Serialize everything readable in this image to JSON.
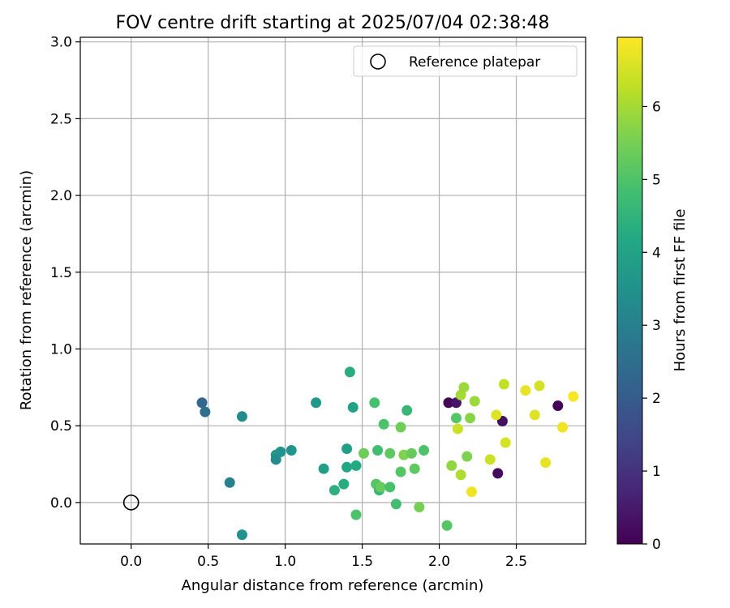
{
  "chart_data": {
    "type": "scatter",
    "title": "FOV centre drift starting at 2025/07/04 02:38:48",
    "xlabel": "Angular distance from reference (arcmin)",
    "ylabel": "Rotation from reference (arcmin)",
    "xlim": [
      -0.33,
      2.95
    ],
    "ylim": [
      -0.27,
      3.03
    ],
    "xticks": [
      0.0,
      0.5,
      1.0,
      1.5,
      2.0,
      2.5
    ],
    "xtick_labels": [
      "0.0",
      "0.5",
      "1.0",
      "1.5",
      "2.0",
      "2.5"
    ],
    "yticks": [
      0.0,
      0.5,
      1.0,
      1.5,
      2.0,
      2.5,
      3.0
    ],
    "ytick_labels": [
      "0.0",
      "0.5",
      "1.0",
      "1.5",
      "2.0",
      "2.5",
      "3.0"
    ],
    "grid": true,
    "colormap": "viridis",
    "colorbar": {
      "label": "Hours from first FF file",
      "range": [
        0,
        6.95
      ],
      "ticks": [
        0,
        1,
        2,
        3,
        4,
        5,
        6
      ],
      "tick_labels": [
        "0",
        "1",
        "2",
        "3",
        "4",
        "5",
        "6"
      ]
    },
    "legend": {
      "position": "top-right",
      "entries": [
        {
          "label": "Reference platepar",
          "marker": "open-circle"
        }
      ]
    },
    "reference_point": {
      "x": 0.0,
      "y": 0.0
    },
    "series": [
      {
        "points": [
          {
            "x": 2.06,
            "y": 0.65,
            "c": 0.1
          },
          {
            "x": 2.11,
            "y": 0.65,
            "c": 0.4
          },
          {
            "x": 2.41,
            "y": 0.53,
            "c": 0.3
          },
          {
            "x": 2.38,
            "y": 0.19,
            "c": 0.2
          },
          {
            "x": 2.77,
            "y": 0.63,
            "c": 0.1
          },
          {
            "x": 0.46,
            "y": 0.65,
            "c": 2.3
          },
          {
            "x": 0.48,
            "y": 0.59,
            "c": 2.5
          },
          {
            "x": 0.64,
            "y": 0.13,
            "c": 3.0
          },
          {
            "x": 0.72,
            "y": 0.56,
            "c": 3.3
          },
          {
            "x": 0.72,
            "y": -0.21,
            "c": 3.5
          },
          {
            "x": 0.94,
            "y": 0.31,
            "c": 3.7
          },
          {
            "x": 0.94,
            "y": 0.28,
            "c": 3.3
          },
          {
            "x": 0.97,
            "y": 0.33,
            "c": 3.5
          },
          {
            "x": 1.04,
            "y": 0.34,
            "c": 3.6
          },
          {
            "x": 1.2,
            "y": 0.65,
            "c": 3.7
          },
          {
            "x": 1.25,
            "y": 0.22,
            "c": 3.9
          },
          {
            "x": 1.32,
            "y": 0.08,
            "c": 4.4
          },
          {
            "x": 1.38,
            "y": 0.12,
            "c": 4.3
          },
          {
            "x": 1.4,
            "y": 0.35,
            "c": 3.9
          },
          {
            "x": 1.4,
            "y": 0.23,
            "c": 4.1
          },
          {
            "x": 1.42,
            "y": 0.85,
            "c": 4.3
          },
          {
            "x": 1.44,
            "y": 0.62,
            "c": 4.0
          },
          {
            "x": 1.46,
            "y": 0.24,
            "c": 4.2
          },
          {
            "x": 1.46,
            "y": -0.08,
            "c": 5.0
          },
          {
            "x": 1.51,
            "y": 0.32,
            "c": 5.4
          },
          {
            "x": 1.58,
            "y": 0.65,
            "c": 4.9
          },
          {
            "x": 1.59,
            "y": 0.12,
            "c": 5.1
          },
          {
            "x": 1.6,
            "y": 0.34,
            "c": 4.8
          },
          {
            "x": 1.61,
            "y": 0.08,
            "c": 4.6
          },
          {
            "x": 1.62,
            "y": 0.1,
            "c": 5.3
          },
          {
            "x": 1.64,
            "y": 0.51,
            "c": 5.0
          },
          {
            "x": 1.68,
            "y": 0.32,
            "c": 5.2
          },
          {
            "x": 1.68,
            "y": 0.1,
            "c": 4.9
          },
          {
            "x": 1.72,
            "y": -0.01,
            "c": 4.8
          },
          {
            "x": 1.75,
            "y": 0.49,
            "c": 5.4
          },
          {
            "x": 1.75,
            "y": 0.2,
            "c": 5.1
          },
          {
            "x": 1.77,
            "y": 0.31,
            "c": 5.6
          },
          {
            "x": 1.79,
            "y": 0.6,
            "c": 4.6
          },
          {
            "x": 1.82,
            "y": 0.32,
            "c": 5.3
          },
          {
            "x": 1.84,
            "y": 0.22,
            "c": 5.2
          },
          {
            "x": 1.87,
            "y": -0.03,
            "c": 5.5
          },
          {
            "x": 1.9,
            "y": 0.34,
            "c": 5.0
          },
          {
            "x": 2.05,
            "y": -0.15,
            "c": 5.1
          },
          {
            "x": 2.08,
            "y": 0.24,
            "c": 5.8
          },
          {
            "x": 2.11,
            "y": 0.55,
            "c": 5.1
          },
          {
            "x": 2.12,
            "y": 0.48,
            "c": 6.4
          },
          {
            "x": 2.14,
            "y": 0.7,
            "c": 6.0
          },
          {
            "x": 2.14,
            "y": 0.18,
            "c": 6.1
          },
          {
            "x": 2.16,
            "y": 0.75,
            "c": 5.9
          },
          {
            "x": 2.18,
            "y": 0.3,
            "c": 5.6
          },
          {
            "x": 2.2,
            "y": 0.55,
            "c": 5.7
          },
          {
            "x": 2.21,
            "y": 0.07,
            "c": 6.8
          },
          {
            "x": 2.23,
            "y": 0.66,
            "c": 5.9
          },
          {
            "x": 2.33,
            "y": 0.28,
            "c": 6.4
          },
          {
            "x": 2.37,
            "y": 0.57,
            "c": 6.6
          },
          {
            "x": 2.42,
            "y": 0.77,
            "c": 6.3
          },
          {
            "x": 2.43,
            "y": 0.39,
            "c": 6.5
          },
          {
            "x": 2.56,
            "y": 0.73,
            "c": 6.7
          },
          {
            "x": 2.62,
            "y": 0.57,
            "c": 6.6
          },
          {
            "x": 2.65,
            "y": 0.76,
            "c": 6.5
          },
          {
            "x": 2.69,
            "y": 0.26,
            "c": 6.7
          },
          {
            "x": 2.8,
            "y": 0.49,
            "c": 6.8
          },
          {
            "x": 2.87,
            "y": 0.69,
            "c": 6.9
          }
        ]
      }
    ]
  }
}
